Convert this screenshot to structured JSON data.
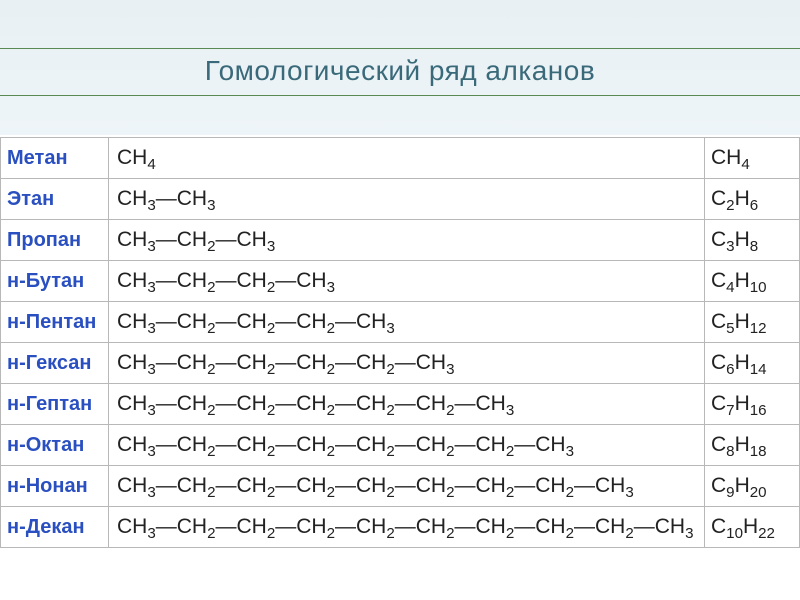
{
  "title": "Гомологический ряд алканов",
  "header_bg_top": "#e8f0f4",
  "header_bg_bot": "#eef5f8",
  "title_color": "#3a6a7a",
  "rule_color": "#5a8a52",
  "name_color": "#2a4fc0",
  "border_color": "#b8b8b8",
  "columns": [
    "name",
    "structure",
    "formula"
  ],
  "rows": [
    {
      "name": "Метан",
      "structure": "CH<sub>4</sub>",
      "formula": "CH<sub>4</sub>"
    },
    {
      "name": "Этан",
      "structure": "CH<sub>3</sub>—CH<sub>3</sub>",
      "formula": "C<sub>2</sub>H<sub>6</sub>"
    },
    {
      "name": "Пропан",
      "structure": "CH<sub>3</sub>—CH<sub>2</sub>—CH<sub>3</sub>",
      "formula": "C<sub>3</sub>H<sub>8</sub>"
    },
    {
      "name": "н-Бутан",
      "structure": "CH<sub>3</sub>—CH<sub>2</sub>—CH<sub>2</sub>—CH<sub>3</sub>",
      "formula": "C<sub>4</sub>H<sub>10</sub>"
    },
    {
      "name": "н-Пентан",
      "structure": "CH<sub>3</sub>—CH<sub>2</sub>—CH<sub>2</sub>—CH<sub>2</sub>—CH<sub>3</sub>",
      "formula": "C<sub>5</sub>H<sub>12</sub>"
    },
    {
      "name": "н-Гексан",
      "structure": "CH<sub>3</sub>—CH<sub>2</sub>—CH<sub>2</sub>—CH<sub>2</sub>—CH<sub>2</sub>—CH<sub>3</sub>",
      "formula": "C<sub>6</sub>H<sub>14</sub>"
    },
    {
      "name": "н-Гептан",
      "structure": "CH<sub>3</sub>—CH<sub>2</sub>—CH<sub>2</sub>—CH<sub>2</sub>—CH<sub>2</sub>—CH<sub>2</sub>—CH<sub>3</sub>",
      "formula": "C<sub>7</sub>H<sub>16</sub>"
    },
    {
      "name": "н-Октан",
      "structure": "CH<sub>3</sub>—CH<sub>2</sub>—CH<sub>2</sub>—CH<sub>2</sub>—CH<sub>2</sub>—CH<sub>2</sub>—CH<sub>2</sub>—CH<sub>3</sub>",
      "formula": "C<sub>8</sub>H<sub>18</sub>"
    },
    {
      "name": "н-Нонан",
      "structure": "CH<sub>3</sub>—CH<sub>2</sub>—CH<sub>2</sub>—CH<sub>2</sub>—CH<sub>2</sub>—CH<sub>2</sub>—CH<sub>2</sub>—CH<sub>2</sub>—CH<sub>3</sub>",
      "formula": "C<sub>9</sub>H<sub>20</sub>"
    },
    {
      "name": "н-Декан",
      "structure": "CH<sub>3</sub>—CH<sub>2</sub>—CH<sub>2</sub>—CH<sub>2</sub>—CH<sub>2</sub>—CH<sub>2</sub>—CH<sub>2</sub>—CH<sub>2</sub>—CH<sub>2</sub>—CH<sub>3</sub>",
      "formula": "C<sub>10</sub>H<sub>22</sub>"
    }
  ]
}
